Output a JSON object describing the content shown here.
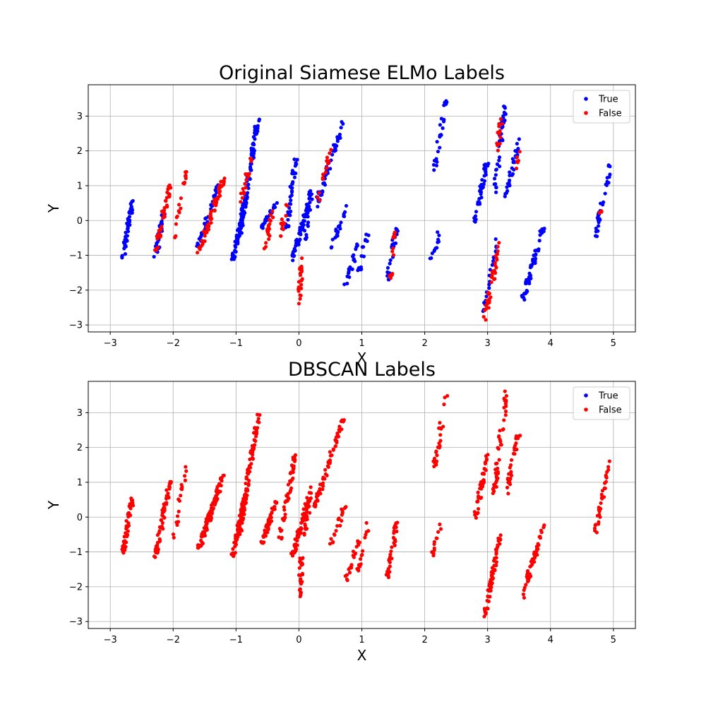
{
  "figure": {
    "charts": [
      {
        "type": "scatter",
        "title": "Original Siamese ELMo Labels",
        "xlabel": "X",
        "ylabel": "Y",
        "xlim": [
          -3.35,
          5.35
        ],
        "ylim": [
          -3.2,
          3.9
        ],
        "xticks": [
          -3,
          -2,
          -1,
          0,
          1,
          2,
          3,
          4,
          5
        ],
        "yticks": [
          -3,
          -2,
          -1,
          0,
          1,
          2,
          3
        ],
        "xtick_labels": [
          "−3",
          "−2",
          "−1",
          "0",
          "1",
          "2",
          "3",
          "4",
          "5"
        ],
        "ytick_labels": [
          "−3",
          "−2",
          "−1",
          "0",
          "1",
          "2",
          "3"
        ],
        "grid": true,
        "legend": {
          "placement": "top-right",
          "entries": [
            {
              "label": "True",
              "color": "#0000ff"
            },
            {
              "label": "False",
              "color": "#ff0000"
            }
          ]
        },
        "series": [
          {
            "name": "True",
            "color": "#0000ff",
            "clusters": [
              {
                "x0": -2.8,
                "y0": -1.05,
                "x1": -2.65,
                "y1": 0.55,
                "n": 50
              },
              {
                "x0": -2.3,
                "y0": -1.25,
                "x1": -2.15,
                "y1": 0.2,
                "n": 30
              },
              {
                "x0": -1.6,
                "y0": -0.8,
                "x1": -1.3,
                "y1": 1.0,
                "n": 40
              },
              {
                "x0": -1.05,
                "y0": -1.1,
                "x1": -0.85,
                "y1": 0.6,
                "n": 60
              },
              {
                "x0": -0.95,
                "y0": -0.5,
                "x1": -0.65,
                "y1": 2.9,
                "n": 90
              },
              {
                "x0": -0.6,
                "y0": -0.2,
                "x1": -0.35,
                "y1": 0.5,
                "n": 25
              },
              {
                "x0": -0.2,
                "y0": -0.3,
                "x1": -0.05,
                "y1": 1.8,
                "n": 40
              },
              {
                "x0": -0.1,
                "y0": -1.1,
                "x1": 0.15,
                "y1": 0.5,
                "n": 60
              },
              {
                "x0": 0.1,
                "y0": -0.5,
                "x1": 0.2,
                "y1": 0.9,
                "n": 25
              },
              {
                "x0": 0.25,
                "y0": 0.3,
                "x1": 0.7,
                "y1": 2.8,
                "n": 50
              },
              {
                "x0": 0.5,
                "y0": -0.85,
                "x1": 0.75,
                "y1": 0.4,
                "n": 20
              },
              {
                "x0": 0.75,
                "y0": -1.8,
                "x1": 0.95,
                "y1": -0.65,
                "n": 20
              },
              {
                "x0": 0.95,
                "y0": -1.55,
                "x1": 1.1,
                "y1": -0.2,
                "n": 15
              },
              {
                "x0": 1.4,
                "y0": -1.75,
                "x1": 1.55,
                "y1": -0.25,
                "n": 25
              },
              {
                "x0": 2.1,
                "y0": -1.25,
                "x1": 2.25,
                "y1": -0.2,
                "n": 12
              },
              {
                "x0": 2.15,
                "y0": 1.45,
                "x1": 2.35,
                "y1": 3.5,
                "n": 25
              },
              {
                "x0": 2.8,
                "y0": -0.05,
                "x1": 3.0,
                "y1": 1.8,
                "n": 40
              },
              {
                "x0": 2.95,
                "y0": -2.6,
                "x1": 3.15,
                "y1": -0.5,
                "n": 30
              },
              {
                "x0": 3.1,
                "y0": 0.7,
                "x1": 3.3,
                "y1": 3.6,
                "n": 35
              },
              {
                "x0": 3.3,
                "y0": 0.7,
                "x1": 3.5,
                "y1": 2.4,
                "n": 30
              },
              {
                "x0": 3.55,
                "y0": -2.3,
                "x1": 3.8,
                "y1": -0.8,
                "n": 45
              },
              {
                "x0": 3.8,
                "y0": -0.6,
                "x1": 3.9,
                "y1": -0.2,
                "n": 8
              },
              {
                "x0": 4.7,
                "y0": -0.5,
                "x1": 4.95,
                "y1": 1.6,
                "n": 30
              }
            ]
          },
          {
            "name": "False",
            "color": "#ff0000",
            "clusters": [
              {
                "x0": -2.3,
                "y0": -1.0,
                "x1": -2.05,
                "y1": 1.0,
                "n": 35
              },
              {
                "x0": -2.0,
                "y0": -0.7,
                "x1": -1.8,
                "y1": 1.5,
                "n": 18
              },
              {
                "x0": -1.6,
                "y0": -0.95,
                "x1": -1.2,
                "y1": 1.2,
                "n": 60
              },
              {
                "x0": -0.95,
                "y0": 0.4,
                "x1": -0.75,
                "y1": 1.8,
                "n": 20
              },
              {
                "x0": -0.55,
                "y0": -0.8,
                "x1": -0.4,
                "y1": 0.3,
                "n": 20
              },
              {
                "x0": -0.3,
                "y0": -0.6,
                "x1": -0.2,
                "y1": 0.6,
                "n": 12
              },
              {
                "x0": 0.0,
                "y0": -2.4,
                "x1": 0.05,
                "y1": -1.1,
                "n": 25
              },
              {
                "x0": 0.3,
                "y0": 0.5,
                "x1": 0.5,
                "y1": 2.1,
                "n": 15
              },
              {
                "x0": 1.45,
                "y0": -1.6,
                "x1": 1.55,
                "y1": -0.2,
                "n": 12
              },
              {
                "x0": 2.95,
                "y0": -2.85,
                "x1": 3.2,
                "y1": -0.6,
                "n": 35
              },
              {
                "x0": 3.15,
                "y0": 1.9,
                "x1": 3.25,
                "y1": 3.4,
                "n": 15
              },
              {
                "x0": 3.45,
                "y0": 1.5,
                "x1": 3.5,
                "y1": 2.0,
                "n": 6
              },
              {
                "x0": 4.78,
                "y0": 0.2,
                "x1": 4.82,
                "y1": 0.3,
                "n": 3
              }
            ]
          }
        ]
      },
      {
        "type": "scatter",
        "title": "DBSCAN Labels",
        "xlabel": "X",
        "ylabel": "Y",
        "xlim": [
          -3.35,
          5.35
        ],
        "ylim": [
          -3.2,
          3.9
        ],
        "xticks": [
          -3,
          -2,
          -1,
          0,
          1,
          2,
          3,
          4,
          5
        ],
        "yticks": [
          -3,
          -2,
          -1,
          0,
          1,
          2,
          3
        ],
        "xtick_labels": [
          "−3",
          "−2",
          "−1",
          "0",
          "1",
          "2",
          "3",
          "4",
          "5"
        ],
        "ytick_labels": [
          "−3",
          "−2",
          "−1",
          "0",
          "1",
          "2",
          "3"
        ],
        "grid": true,
        "legend": {
          "placement": "top-right",
          "entries": [
            {
              "label": "True",
              "color": "#0000ff"
            },
            {
              "label": "False",
              "color": "#ff0000"
            }
          ]
        },
        "series": [
          {
            "name": "False",
            "color": "#ff0000",
            "clusters": [
              {
                "x0": -2.8,
                "y0": -1.05,
                "x1": -2.65,
                "y1": 0.55,
                "n": 50
              },
              {
                "x0": -2.3,
                "y0": -1.25,
                "x1": -2.05,
                "y1": 1.0,
                "n": 60
              },
              {
                "x0": -2.0,
                "y0": -0.7,
                "x1": -1.8,
                "y1": 1.5,
                "n": 18
              },
              {
                "x0": -1.6,
                "y0": -0.95,
                "x1": -1.2,
                "y1": 1.2,
                "n": 95
              },
              {
                "x0": -1.05,
                "y0": -1.1,
                "x1": -0.85,
                "y1": 0.6,
                "n": 60
              },
              {
                "x0": -0.95,
                "y0": -0.5,
                "x1": -0.65,
                "y1": 2.9,
                "n": 100
              },
              {
                "x0": -0.6,
                "y0": -0.8,
                "x1": -0.35,
                "y1": 0.5,
                "n": 40
              },
              {
                "x0": -0.3,
                "y0": -0.6,
                "x1": -0.05,
                "y1": 1.8,
                "n": 50
              },
              {
                "x0": -0.1,
                "y0": -1.1,
                "x1": 0.15,
                "y1": 0.5,
                "n": 60
              },
              {
                "x0": 0.0,
                "y0": -2.4,
                "x1": 0.05,
                "y1": -1.1,
                "n": 25
              },
              {
                "x0": 0.1,
                "y0": -0.5,
                "x1": 0.2,
                "y1": 0.9,
                "n": 25
              },
              {
                "x0": 0.25,
                "y0": 0.3,
                "x1": 0.7,
                "y1": 2.8,
                "n": 60
              },
              {
                "x0": 0.5,
                "y0": -0.85,
                "x1": 0.75,
                "y1": 0.4,
                "n": 20
              },
              {
                "x0": 0.75,
                "y0": -1.8,
                "x1": 0.95,
                "y1": -0.65,
                "n": 20
              },
              {
                "x0": 0.95,
                "y0": -1.55,
                "x1": 1.1,
                "y1": -0.2,
                "n": 15
              },
              {
                "x0": 1.4,
                "y0": -1.75,
                "x1": 1.55,
                "y1": -0.2,
                "n": 35
              },
              {
                "x0": 2.1,
                "y0": -1.25,
                "x1": 2.25,
                "y1": -0.2,
                "n": 12
              },
              {
                "x0": 2.15,
                "y0": 1.45,
                "x1": 2.35,
                "y1": 3.5,
                "n": 25
              },
              {
                "x0": 2.8,
                "y0": -0.05,
                "x1": 3.0,
                "y1": 1.8,
                "n": 40
              },
              {
                "x0": 2.95,
                "y0": -2.85,
                "x1": 3.2,
                "y1": -0.5,
                "n": 60
              },
              {
                "x0": 3.1,
                "y0": 0.7,
                "x1": 3.3,
                "y1": 3.6,
                "n": 45
              },
              {
                "x0": 3.3,
                "y0": 0.7,
                "x1": 3.5,
                "y1": 2.4,
                "n": 35
              },
              {
                "x0": 3.55,
                "y0": -2.3,
                "x1": 3.8,
                "y1": -0.8,
                "n": 45
              },
              {
                "x0": 3.8,
                "y0": -0.6,
                "x1": 3.9,
                "y1": -0.2,
                "n": 8
              },
              {
                "x0": 4.7,
                "y0": -0.5,
                "x1": 4.95,
                "y1": 1.6,
                "n": 32
              }
            ]
          }
        ]
      }
    ]
  }
}
